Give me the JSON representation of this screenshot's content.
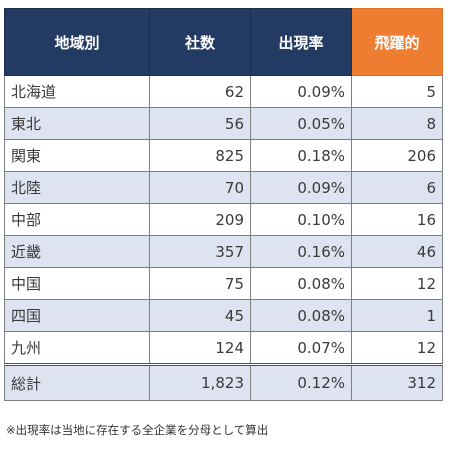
{
  "table": {
    "headers": {
      "region": "地域別",
      "count": "社数",
      "rate": "出現率",
      "leap": "飛躍的"
    },
    "accent_color": "#ee7d31",
    "header_color": "#233a63",
    "stripe_color": "#dde3f1",
    "rows": [
      {
        "region": "北海道",
        "count": "62",
        "rate": "0.09%",
        "leap": "5"
      },
      {
        "region": "東北",
        "count": "56",
        "rate": "0.05%",
        "leap": "8"
      },
      {
        "region": "関東",
        "count": "825",
        "rate": "0.18%",
        "leap": "206"
      },
      {
        "region": "北陸",
        "count": "70",
        "rate": "0.09%",
        "leap": "6"
      },
      {
        "region": "中部",
        "count": "209",
        "rate": "0.10%",
        "leap": "16"
      },
      {
        "region": "近畿",
        "count": "357",
        "rate": "0.16%",
        "leap": "46"
      },
      {
        "region": "中国",
        "count": "75",
        "rate": "0.08%",
        "leap": "12"
      },
      {
        "region": "四国",
        "count": "45",
        "rate": "0.08%",
        "leap": "1"
      },
      {
        "region": "九州",
        "count": "124",
        "rate": "0.07%",
        "leap": "12"
      }
    ],
    "total": {
      "region": "総計",
      "count": "1,823",
      "rate": "0.12%",
      "leap": "312"
    }
  },
  "footnote": "※出現率は当地に存在する全企業を分母として算出"
}
